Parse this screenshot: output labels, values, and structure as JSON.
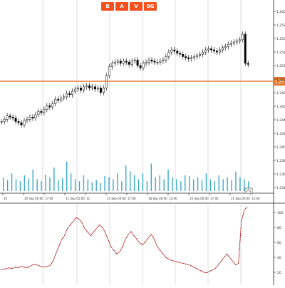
{
  "toolbar": {
    "buttons": [
      "B",
      "A",
      "V",
      "BG"
    ]
  },
  "price_panel": {
    "current_price_label": "1.25",
    "y_ticks": [
      "1.260",
      "1.258",
      "1.256",
      "1.254",
      "1.252",
      "1.250",
      "1.248",
      "1.246",
      "1.244",
      "1.242",
      "1.240",
      "1.238",
      "1.236",
      "1.234"
    ],
    "x_ticks": [
      "10",
      "30 Sep 00:00",
      "17:00",
      "11 Sep 05:00",
      "12",
      "13 Sep 00:00",
      "17:00",
      "18 Sep 00:00",
      "12:00",
      "20 Sep 00:00",
      "17:00",
      "21 Sep 00:00",
      "12:00"
    ],
    "colors": {
      "price_line": "#e07a2e",
      "candle": "#000000",
      "volume": "#3aa9c9",
      "grid": "#c9c9c9"
    }
  },
  "indicator_panel": {
    "y_ticks": [
      "100",
      "80",
      "60",
      "40",
      "20"
    ],
    "colors": {
      "line": "#a00000"
    }
  },
  "chart_data": [
    {
      "type": "candlestick",
      "title": "",
      "series": [
        {
          "name": "",
          "values": [
            0.22,
            0.24,
            0.27,
            0.26,
            0.25,
            0.22,
            0.21,
            0.19,
            0.23,
            0.24,
            0.26,
            0.25,
            0.28,
            0.31,
            0.3,
            0.33,
            0.36,
            0.35,
            0.38,
            0.42,
            0.41,
            0.43,
            0.44,
            0.47,
            0.46,
            0.49,
            0.51,
            0.52,
            0.5,
            0.53,
            0.54,
            0.52,
            0.53,
            0.51,
            0.52,
            0.48,
            0.52,
            0.63,
            0.71,
            0.74,
            0.75,
            0.76,
            0.74,
            0.76,
            0.75,
            0.73,
            0.76,
            0.77,
            0.72,
            0.7,
            0.74,
            0.75,
            0.77,
            0.76,
            0.75,
            0.75,
            0.76,
            0.77,
            0.8,
            0.84,
            0.86,
            0.85,
            0.83,
            0.82,
            0.8,
            0.79,
            0.78,
            0.79,
            0.8,
            0.81,
            0.82,
            0.84,
            0.86,
            0.87,
            0.86,
            0.85,
            0.84,
            0.86,
            0.88,
            0.89,
            0.91,
            0.92,
            0.93,
            0.94,
            0.95,
            1.0,
            0.74,
            0.73
          ]
        }
      ]
    },
    {
      "type": "bar",
      "title": "",
      "series": [
        {
          "name": "",
          "values": [
            0.35,
            0.28,
            0.45,
            0.3,
            0.25,
            0.4,
            0.32,
            0.55,
            0.3,
            0.25,
            0.42,
            0.35,
            0.6,
            0.28,
            0.33,
            0.75,
            0.45,
            0.3,
            0.25,
            0.4,
            0.3,
            0.22,
            0.28,
            0.2,
            0.38,
            0.35,
            0.3,
            0.45,
            0.25,
            0.65,
            0.5,
            0.4,
            0.3,
            0.45,
            0.25,
            0.7,
            0.35,
            0.4,
            0.3,
            0.55,
            0.35,
            0.3,
            0.25,
            0.4,
            0.38,
            0.3,
            0.35,
            0.28,
            0.45,
            0.3,
            0.25,
            0.4,
            0.3,
            0.35,
            0.28,
            0.5,
            0.35,
            0.3,
            0.25
          ]
        }
      ]
    },
    {
      "type": "line",
      "title": "",
      "ylim": [
        0,
        100
      ],
      "series": [
        {
          "name": "",
          "values": [
            13,
            14,
            15,
            16,
            15,
            17,
            16,
            18,
            17,
            16,
            18,
            20,
            21,
            19,
            18,
            17,
            18,
            19,
            25,
            35,
            45,
            55,
            60,
            70,
            75,
            80,
            85,
            83,
            78,
            70,
            65,
            60,
            65,
            70,
            75,
            72,
            65,
            55,
            45,
            40,
            35,
            38,
            45,
            55,
            62,
            66,
            60,
            55,
            50,
            48,
            52,
            58,
            62,
            55,
            45,
            40,
            35,
            30,
            28,
            26,
            25,
            24,
            23,
            22,
            21,
            20,
            18,
            16,
            14,
            12,
            10,
            9,
            11,
            13,
            15,
            20,
            25,
            30,
            35,
            30,
            25,
            20,
            22,
            80,
            95,
            100
          ]
        }
      ]
    }
  ]
}
